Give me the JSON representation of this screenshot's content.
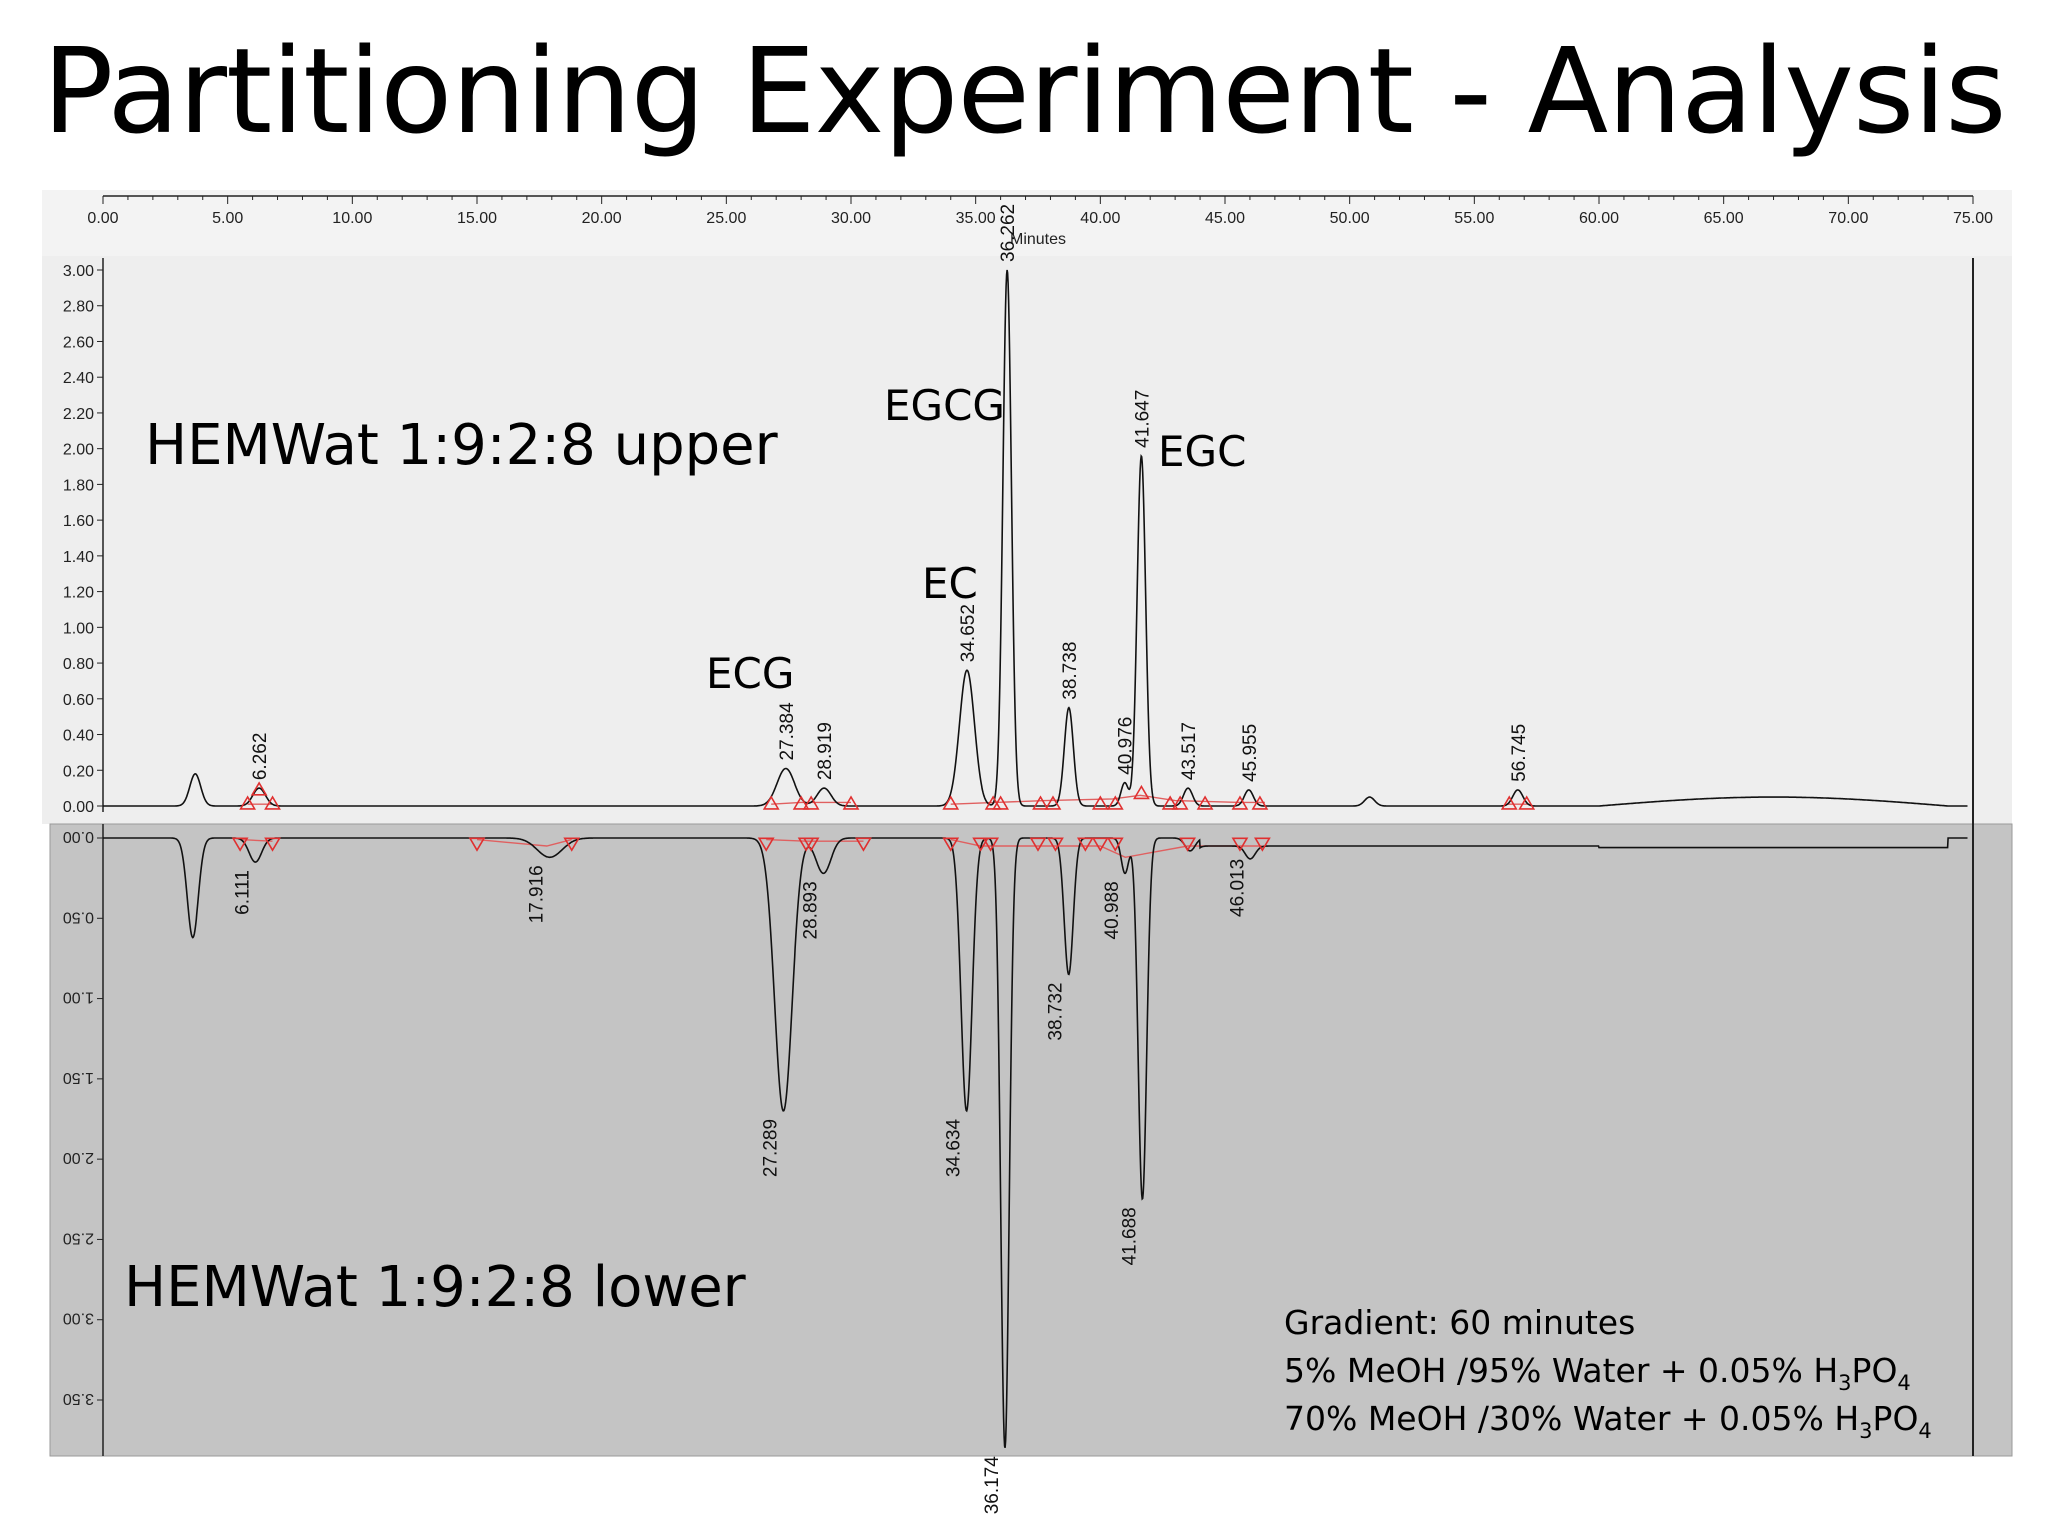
{
  "slide": {
    "title": "Partitioning Experiment - Analysis"
  },
  "chart_data": {
    "type": "line",
    "xlabel": "Minutes",
    "xlim": [
      0,
      75
    ],
    "x_ticks": [
      "0.00",
      "5.00",
      "10.00",
      "15.00",
      "20.00",
      "25.00",
      "30.00",
      "35.00",
      "40.00",
      "45.00",
      "50.00",
      "55.00",
      "60.00",
      "65.00",
      "70.00",
      "75.00"
    ],
    "upper": {
      "name": "HEMWat 1:9:2:8 upper",
      "ylim": [
        0,
        3.0
      ],
      "y_ticks": [
        "0.00",
        "0.20",
        "0.40",
        "0.60",
        "0.80",
        "1.00",
        "1.20",
        "1.40",
        "1.60",
        "1.80",
        "2.00",
        "2.20",
        "2.40",
        "2.60",
        "2.80",
        "3.00"
      ],
      "peaks": [
        {
          "t": 3.7,
          "h": 0.18,
          "w": 0.22
        },
        {
          "t": 6.262,
          "h": 0.1,
          "w": 0.25,
          "label": "6.262"
        },
        {
          "t": 27.384,
          "h": 0.21,
          "w": 0.35,
          "label": "27.384"
        },
        {
          "t": 28.919,
          "h": 0.1,
          "w": 0.28,
          "label": "28.919"
        },
        {
          "t": 34.652,
          "h": 0.76,
          "w": 0.3,
          "label": "34.652"
        },
        {
          "t": 36.262,
          "h": 3.0,
          "w": 0.17,
          "label": "36.262"
        },
        {
          "t": 38.738,
          "h": 0.55,
          "w": 0.18,
          "label": "38.738"
        },
        {
          "t": 40.976,
          "h": 0.13,
          "w": 0.15,
          "label": "40.976"
        },
        {
          "t": 41.647,
          "h": 1.96,
          "w": 0.17,
          "label": "41.647"
        },
        {
          "t": 43.517,
          "h": 0.1,
          "w": 0.18,
          "label": "43.517"
        },
        {
          "t": 45.955,
          "h": 0.09,
          "w": 0.18,
          "label": "45.955"
        },
        {
          "t": 50.8,
          "h": 0.05,
          "w": 0.2
        },
        {
          "t": 56.745,
          "h": 0.09,
          "w": 0.2,
          "label": "56.745"
        }
      ]
    },
    "lower": {
      "name": "HEMWat 1:9:2:8 lower",
      "ylim": [
        0,
        3.75
      ],
      "y_ticks": [
        "0.00",
        "0.50",
        "1.00",
        "1.50",
        "2.00",
        "2.50",
        "3.00",
        "3.50"
      ],
      "peaks": [
        {
          "t": 3.6,
          "h": 0.62,
          "w": 0.22
        },
        {
          "t": 6.111,
          "h": 0.15,
          "w": 0.25,
          "label": "6.111"
        },
        {
          "t": 17.916,
          "h": 0.12,
          "w": 0.5,
          "label": "17.916"
        },
        {
          "t": 27.289,
          "h": 1.7,
          "w": 0.35,
          "label": "27.289"
        },
        {
          "t": 28.893,
          "h": 0.22,
          "w": 0.3,
          "label": "28.893"
        },
        {
          "t": 34.634,
          "h": 1.7,
          "w": 0.22,
          "label": "34.634"
        },
        {
          "t": 36.174,
          "h": 3.8,
          "w": 0.17,
          "label": "36.174"
        },
        {
          "t": 38.732,
          "h": 0.85,
          "w": 0.18,
          "label": "38.732"
        },
        {
          "t": 40.988,
          "h": 0.22,
          "w": 0.15,
          "label": "40.988"
        },
        {
          "t": 41.688,
          "h": 2.25,
          "w": 0.17,
          "label": "41.688"
        },
        {
          "t": 43.6,
          "h": 0.08,
          "w": 0.2
        },
        {
          "t": 46.013,
          "h": 0.08,
          "w": 0.2,
          "label": "46.013"
        }
      ]
    },
    "annotations": {
      "ecg": "ECG",
      "ec": "EC",
      "egcg": "EGCG",
      "egc": "EGC",
      "upper_label": "HEMWat 1:9:2:8 upper",
      "lower_label": "HEMWat 1:9:2:8 lower"
    },
    "gradient_note": {
      "line1": "Gradient: 60 minutes",
      "line2_pre": "5% MeOH /95% Water + 0.05% H",
      "line3_pre": "70% MeOH /30% Water + 0.05% H",
      "h_sub": "3",
      "po": "PO",
      "po_sub": "4"
    }
  }
}
